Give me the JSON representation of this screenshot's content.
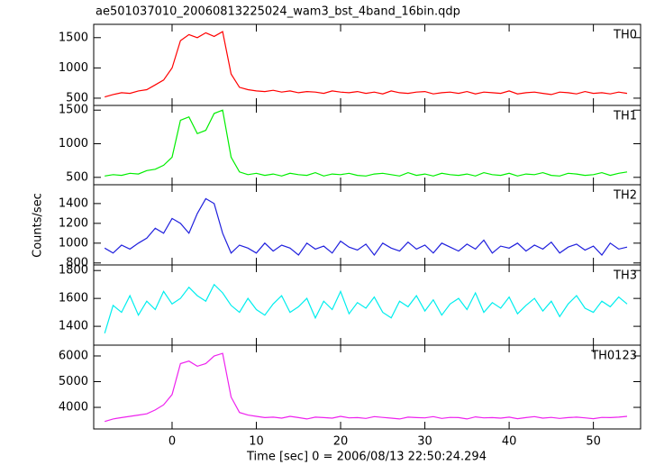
{
  "chart_data": [
    {
      "type": "line",
      "title": "ae501037010_20060813225024_wam3_bst_4band_16bin.qdp",
      "label": "TH0",
      "color": "#ff0000",
      "x": [
        -8,
        -7,
        -6,
        -5,
        -4,
        -3,
        -2,
        -1,
        0,
        1,
        2,
        3,
        4,
        5,
        6,
        7,
        8,
        9,
        10,
        11,
        12,
        13,
        14,
        15,
        16,
        17,
        18,
        19,
        20,
        21,
        22,
        23,
        24,
        25,
        26,
        27,
        28,
        29,
        30,
        31,
        32,
        33,
        34,
        35,
        36,
        37,
        38,
        39,
        40,
        41,
        42,
        43,
        44,
        45,
        46,
        47,
        48,
        49,
        50,
        51,
        52,
        53,
        54
      ],
      "values": [
        520,
        560,
        590,
        580,
        620,
        640,
        720,
        800,
        1000,
        1450,
        1550,
        1500,
        1580,
        1520,
        1600,
        900,
        680,
        640,
        620,
        610,
        630,
        600,
        620,
        590,
        610,
        600,
        580,
        620,
        600,
        590,
        610,
        580,
        600,
        570,
        620,
        590,
        580,
        600,
        610,
        570,
        590,
        600,
        580,
        610,
        570,
        600,
        590,
        580,
        620,
        570,
        590,
        600,
        580,
        560,
        600,
        590,
        570,
        610,
        580,
        590,
        570,
        600,
        580
      ],
      "xlim": [
        -9.3,
        55.6
      ],
      "ylim": [
        380,
        1720
      ],
      "yticks": [
        500,
        1000,
        1500
      ]
    },
    {
      "type": "line",
      "label": "TH1",
      "color": "#00ee00",
      "x": [
        -8,
        -7,
        -6,
        -5,
        -4,
        -3,
        -2,
        -1,
        0,
        1,
        2,
        3,
        4,
        5,
        6,
        7,
        8,
        9,
        10,
        11,
        12,
        13,
        14,
        15,
        16,
        17,
        18,
        19,
        20,
        21,
        22,
        23,
        24,
        25,
        26,
        27,
        28,
        29,
        30,
        31,
        32,
        33,
        34,
        35,
        36,
        37,
        38,
        39,
        40,
        41,
        42,
        43,
        44,
        45,
        46,
        47,
        48,
        49,
        50,
        51,
        52,
        53,
        54
      ],
      "values": [
        520,
        540,
        530,
        560,
        550,
        600,
        620,
        680,
        800,
        1350,
        1400,
        1150,
        1200,
        1450,
        1500,
        800,
        580,
        540,
        560,
        530,
        550,
        520,
        560,
        540,
        530,
        570,
        520,
        550,
        540,
        560,
        530,
        520,
        550,
        560,
        540,
        520,
        570,
        530,
        550,
        520,
        560,
        540,
        530,
        550,
        520,
        570,
        540,
        530,
        560,
        520,
        550,
        540,
        570,
        530,
        520,
        560,
        550,
        530,
        540,
        570,
        530,
        560,
        580
      ],
      "xlim": [
        -9.3,
        55.6
      ],
      "ylim": [
        390,
        1570
      ],
      "yticks": [
        500,
        1000,
        1500
      ]
    },
    {
      "type": "line",
      "label": "TH2",
      "color": "#2020dd",
      "y_label": "Counts/sec",
      "x": [
        -8,
        -7,
        -6,
        -5,
        -4,
        -3,
        -2,
        -1,
        0,
        1,
        2,
        3,
        4,
        5,
        6,
        7,
        8,
        9,
        10,
        11,
        12,
        13,
        14,
        15,
        16,
        17,
        18,
        19,
        20,
        21,
        22,
        23,
        24,
        25,
        26,
        27,
        28,
        29,
        30,
        31,
        32,
        33,
        34,
        35,
        36,
        37,
        38,
        39,
        40,
        41,
        42,
        43,
        44,
        45,
        46,
        47,
        48,
        49,
        50,
        51,
        52,
        53,
        54
      ],
      "values": [
        950,
        900,
        980,
        940,
        1000,
        1050,
        1150,
        1100,
        1250,
        1200,
        1100,
        1300,
        1450,
        1400,
        1100,
        900,
        980,
        950,
        900,
        1000,
        920,
        980,
        950,
        880,
        1000,
        940,
        970,
        900,
        1020,
        960,
        930,
        990,
        880,
        1000,
        950,
        920,
        1010,
        940,
        980,
        900,
        1000,
        960,
        920,
        990,
        940,
        1030,
        900,
        970,
        950,
        1000,
        920,
        980,
        940,
        1010,
        900,
        960,
        990,
        930,
        970,
        880,
        1000,
        940,
        960
      ],
      "xlim": [
        -9.3,
        55.6
      ],
      "ylim": [
        780,
        1590
      ],
      "yticks": [
        800,
        1000,
        1200,
        1400
      ]
    },
    {
      "type": "line",
      "label": "TH3",
      "color": "#00eeee",
      "x": [
        -8,
        -7,
        -6,
        -5,
        -4,
        -3,
        -2,
        -1,
        0,
        1,
        2,
        3,
        4,
        5,
        6,
        7,
        8,
        9,
        10,
        11,
        12,
        13,
        14,
        15,
        16,
        17,
        18,
        19,
        20,
        21,
        22,
        23,
        24,
        25,
        26,
        27,
        28,
        29,
        30,
        31,
        32,
        33,
        34,
        35,
        36,
        37,
        38,
        39,
        40,
        41,
        42,
        43,
        44,
        45,
        46,
        47,
        48,
        49,
        50,
        51,
        52,
        53,
        54
      ],
      "values": [
        1350,
        1550,
        1500,
        1620,
        1480,
        1580,
        1520,
        1650,
        1560,
        1600,
        1680,
        1620,
        1580,
        1700,
        1640,
        1550,
        1500,
        1600,
        1520,
        1480,
        1560,
        1620,
        1500,
        1540,
        1600,
        1460,
        1580,
        1520,
        1650,
        1490,
        1570,
        1530,
        1610,
        1500,
        1460,
        1580,
        1540,
        1620,
        1510,
        1590,
        1480,
        1560,
        1600,
        1520,
        1640,
        1500,
        1570,
        1530,
        1610,
        1490,
        1550,
        1600,
        1510,
        1580,
        1470,
        1560,
        1620,
        1530,
        1500,
        1580,
        1540,
        1610,
        1560
      ],
      "xlim": [
        -9.3,
        55.6
      ],
      "ylim": [
        1265,
        1840
      ],
      "yticks": [
        1400,
        1600,
        1800
      ]
    },
    {
      "type": "line",
      "label": "TH0123",
      "color": "#ee22ee",
      "x_label": "Time [sec] 0 = 2006/08/13 22:50:24.294",
      "x": [
        -8,
        -7,
        -6,
        -5,
        -4,
        -3,
        -2,
        -1,
        0,
        1,
        2,
        3,
        4,
        5,
        6,
        7,
        8,
        9,
        10,
        11,
        12,
        13,
        14,
        15,
        16,
        17,
        18,
        19,
        20,
        21,
        22,
        23,
        24,
        25,
        26,
        27,
        28,
        29,
        30,
        31,
        32,
        33,
        34,
        35,
        36,
        37,
        38,
        39,
        40,
        41,
        42,
        43,
        44,
        45,
        46,
        47,
        48,
        49,
        50,
        51,
        52,
        53,
        54
      ],
      "values": [
        3450,
        3550,
        3600,
        3650,
        3700,
        3750,
        3900,
        4100,
        4500,
        5700,
        5800,
        5600,
        5700,
        6000,
        6100,
        4400,
        3800,
        3700,
        3650,
        3600,
        3620,
        3580,
        3650,
        3600,
        3550,
        3620,
        3600,
        3580,
        3650,
        3590,
        3600,
        3570,
        3640,
        3610,
        3580,
        3550,
        3620,
        3600,
        3590,
        3640,
        3570,
        3610,
        3600,
        3550,
        3630,
        3590,
        3600,
        3580,
        3620,
        3560,
        3600,
        3640,
        3580,
        3610,
        3570,
        3600,
        3620,
        3590,
        3560,
        3610,
        3600,
        3620,
        3650
      ],
      "xlim": [
        -9.3,
        55.6
      ],
      "ylim": [
        3160,
        6420
      ],
      "yticks": [
        4000,
        5000,
        6000
      ],
      "xticks": [
        0,
        10,
        20,
        30,
        40,
        50
      ]
    }
  ]
}
